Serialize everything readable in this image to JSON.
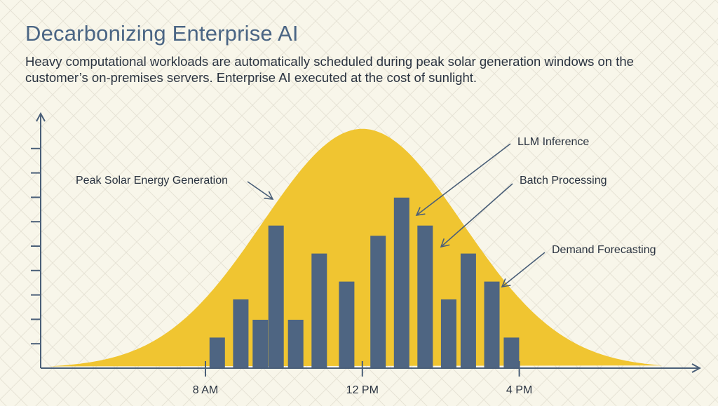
{
  "colors": {
    "background": "#f8f6ea",
    "grid": "#e6e3d6",
    "curve": "#f0c531",
    "bars": "#4e6582",
    "axis": "#4a5f78",
    "title": "#4a6584",
    "text": "#2a3340"
  },
  "header": {
    "title": "Decarbonizing Enterprise AI",
    "subtitle": "Heavy computational workloads are automatically scheduled during peak solar generation windows on the customer’s on-premises servers. Enterprise AI executed at the cost of sunlight."
  },
  "chart_data": {
    "type": "bar",
    "xlabel": "",
    "ylabel": "",
    "x_ticks": [
      {
        "label": "8 AM",
        "hour": 8
      },
      {
        "label": "12 PM",
        "hour": 12
      },
      {
        "label": "4 PM",
        "hour": 16
      }
    ],
    "xlim": [
      3.8,
      20.6
    ],
    "ylim": [
      0,
      10
    ],
    "y_tick_count": 9,
    "grid": false,
    "series": [
      {
        "name": "Peak Solar Energy Generation",
        "kind": "area",
        "peak_hour": 12,
        "peak_value": 9.4,
        "spread_hours": 2.55
      },
      {
        "kind": "bar",
        "hours": [
          8.3,
          8.9,
          9.4,
          9.8,
          10.3,
          10.9,
          11.6,
          12.4,
          13.0,
          13.6,
          14.2,
          14.7,
          15.3,
          15.8
        ],
        "values": [
          1.2,
          2.7,
          1.9,
          5.6,
          1.9,
          4.5,
          3.4,
          5.2,
          6.7,
          5.6,
          2.7,
          4.5,
          3.4,
          1.2
        ]
      }
    ],
    "annotations": [
      {
        "text": "Peak Solar Energy Generation"
      },
      {
        "text": "LLM Inference"
      },
      {
        "text": "Batch Processing"
      },
      {
        "text": "Demand Forecasting"
      }
    ]
  }
}
